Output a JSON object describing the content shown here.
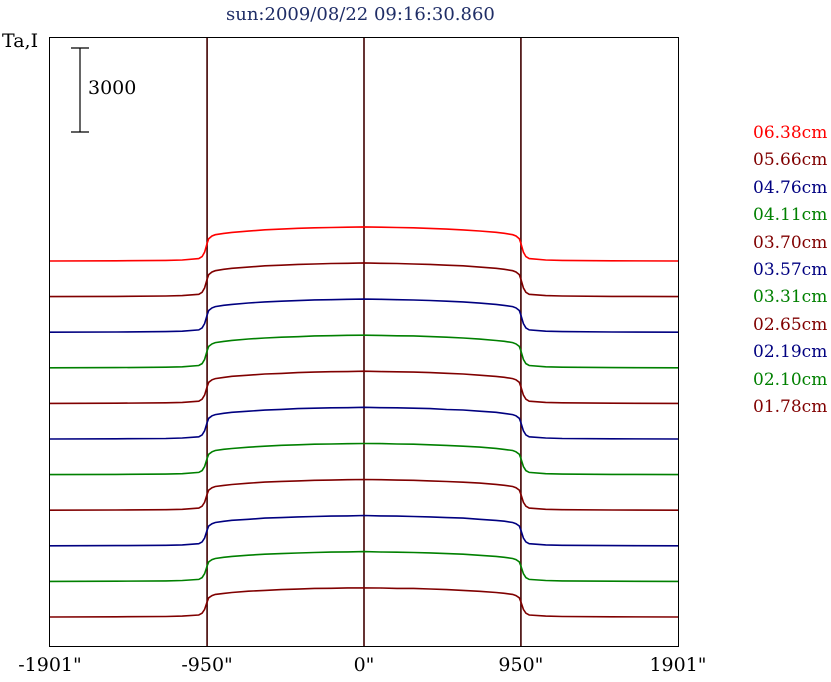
{
  "chart_data": {
    "type": "line",
    "title": "sun:2009/08/22 09:16:30.860",
    "ylabel": "Ta,I",
    "scale_bar_label": "3000",
    "scale_bar_value": 3000,
    "xlim": [
      -1901,
      1901
    ],
    "x_ticks": [
      {
        "value": -1901,
        "label": "-1901\""
      },
      {
        "value": -950,
        "label": "-950\""
      },
      {
        "value": 0,
        "label": "0\""
      },
      {
        "value": 950,
        "label": "950\""
      },
      {
        "value": 1901,
        "label": "1901\""
      }
    ],
    "vertical_markers": [
      -950,
      0,
      950
    ],
    "grid": false,
    "legend_position": "right",
    "profile_shape": {
      "x": [
        -1901,
        -1500,
        -1200,
        -1100,
        -1000,
        -980,
        -965,
        -950,
        -940,
        -920,
        -900,
        -850,
        -800,
        -700,
        -600,
        -500,
        -400,
        -300,
        -200,
        -100,
        0,
        100,
        200,
        300,
        400,
        500,
        600,
        700,
        800,
        850,
        900,
        920,
        940,
        950,
        965,
        980,
        1000,
        1100,
        1200,
        1500,
        1901
      ],
      "y": [
        0,
        8,
        20,
        35,
        80,
        150,
        300,
        600,
        760,
        850,
        895,
        940,
        975,
        1020,
        1060,
        1085,
        1110,
        1130,
        1140,
        1150,
        1160,
        1150,
        1140,
        1130,
        1110,
        1085,
        1060,
        1020,
        975,
        940,
        895,
        850,
        760,
        600,
        300,
        150,
        80,
        35,
        20,
        8,
        0
      ]
    },
    "series": [
      {
        "name": "06.38cm",
        "color": "#ff0000",
        "offset": 10
      },
      {
        "name": "05.66cm",
        "color": "#800000",
        "offset": 9
      },
      {
        "name": "04.76cm",
        "color": "#000080",
        "offset": 8
      },
      {
        "name": "04.11cm",
        "color": "#008000",
        "offset": 7
      },
      {
        "name": "03.70cm",
        "color": "#800000",
        "offset": 6
      },
      {
        "name": "03.57cm",
        "color": "#000080",
        "offset": 5
      },
      {
        "name": "03.31cm",
        "color": "#008000",
        "offset": 4
      },
      {
        "name": "02.65cm",
        "color": "#800000",
        "offset": 3
      },
      {
        "name": "02.19cm",
        "color": "#000080",
        "offset": 2
      },
      {
        "name": "02.10cm",
        "color": "#008000",
        "offset": 1
      },
      {
        "name": "01.78cm",
        "color": "#800000",
        "offset": 0
      }
    ],
    "colors": {
      "title": "#1f2d66",
      "markers": "#400000",
      "axes": "#000000"
    }
  }
}
